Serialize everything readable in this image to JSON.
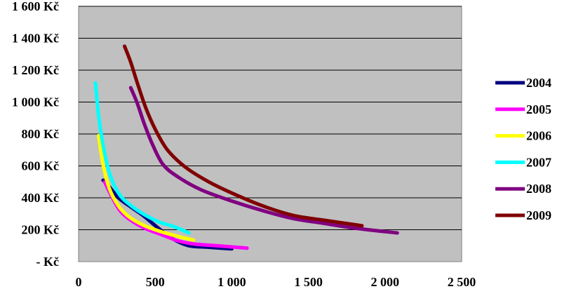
{
  "chart_data": {
    "type": "line",
    "title": "",
    "xlabel": "",
    "ylabel": "",
    "xlim": [
      0,
      2500
    ],
    "ylim": [
      0,
      1600
    ],
    "x_ticks": [
      0,
      500,
      1000,
      1500,
      2000,
      2500
    ],
    "x_tick_labels": [
      "0",
      "500",
      "1 000",
      "1 500",
      "2 000",
      "2 500"
    ],
    "y_ticks": [
      0,
      200,
      400,
      600,
      800,
      1000,
      1200,
      1400,
      1600
    ],
    "y_tick_labels": [
      "- Kč",
      "200 Kč",
      "400 Kč",
      "600 Kč",
      "800 Kč",
      "1 000 Kč",
      "1 200 Kč",
      "1 400 Kč",
      "1 600 Kč"
    ],
    "grid": "horizontal",
    "plot_background": "#c0c0c0",
    "legend_position": "right",
    "series": [
      {
        "name": "2004",
        "color": "#000080",
        "points": [
          [
            160,
            510
          ],
          [
            200,
            470
          ],
          [
            260,
            400
          ],
          [
            330,
            350
          ],
          [
            420,
            290
          ],
          [
            520,
            210
          ],
          [
            620,
            140
          ],
          [
            720,
            100
          ],
          [
            850,
            90
          ],
          [
            1000,
            80
          ]
        ]
      },
      {
        "name": "2005",
        "color": "#ff00ff",
        "points": [
          [
            170,
            500
          ],
          [
            210,
            420
          ],
          [
            270,
            320
          ],
          [
            340,
            260
          ],
          [
            430,
            210
          ],
          [
            540,
            170
          ],
          [
            650,
            130
          ],
          [
            760,
            110
          ],
          [
            900,
            100
          ],
          [
            1100,
            85
          ]
        ]
      },
      {
        "name": "2006",
        "color": "#ffff00",
        "points": [
          [
            130,
            790
          ],
          [
            160,
            610
          ],
          [
            200,
            460
          ],
          [
            260,
            350
          ],
          [
            330,
            280
          ],
          [
            420,
            230
          ],
          [
            530,
            190
          ],
          [
            640,
            160
          ],
          [
            750,
            135
          ]
        ]
      },
      {
        "name": "2007",
        "color": "#00ffff",
        "points": [
          [
            110,
            1120
          ],
          [
            130,
            920
          ],
          [
            160,
            730
          ],
          [
            200,
            560
          ],
          [
            260,
            430
          ],
          [
            330,
            360
          ],
          [
            420,
            300
          ],
          [
            520,
            250
          ],
          [
            620,
            220
          ],
          [
            720,
            180
          ]
        ]
      },
      {
        "name": "2008",
        "color": "#800080",
        "points": [
          [
            340,
            1090
          ],
          [
            380,
            1000
          ],
          [
            430,
            860
          ],
          [
            480,
            740
          ],
          [
            550,
            610
          ],
          [
            650,
            530
          ],
          [
            800,
            450
          ],
          [
            1000,
            380
          ],
          [
            1200,
            320
          ],
          [
            1400,
            270
          ],
          [
            1600,
            240
          ],
          [
            1800,
            210
          ],
          [
            2080,
            180
          ]
        ]
      },
      {
        "name": "2009",
        "color": "#800000",
        "points": [
          [
            300,
            1350
          ],
          [
            340,
            1250
          ],
          [
            390,
            1100
          ],
          [
            440,
            960
          ],
          [
            500,
            830
          ],
          [
            580,
            700
          ],
          [
            700,
            590
          ],
          [
            850,
            500
          ],
          [
            1000,
            430
          ],
          [
            1200,
            350
          ],
          [
            1400,
            290
          ],
          [
            1600,
            260
          ],
          [
            1850,
            225
          ]
        ]
      }
    ]
  }
}
